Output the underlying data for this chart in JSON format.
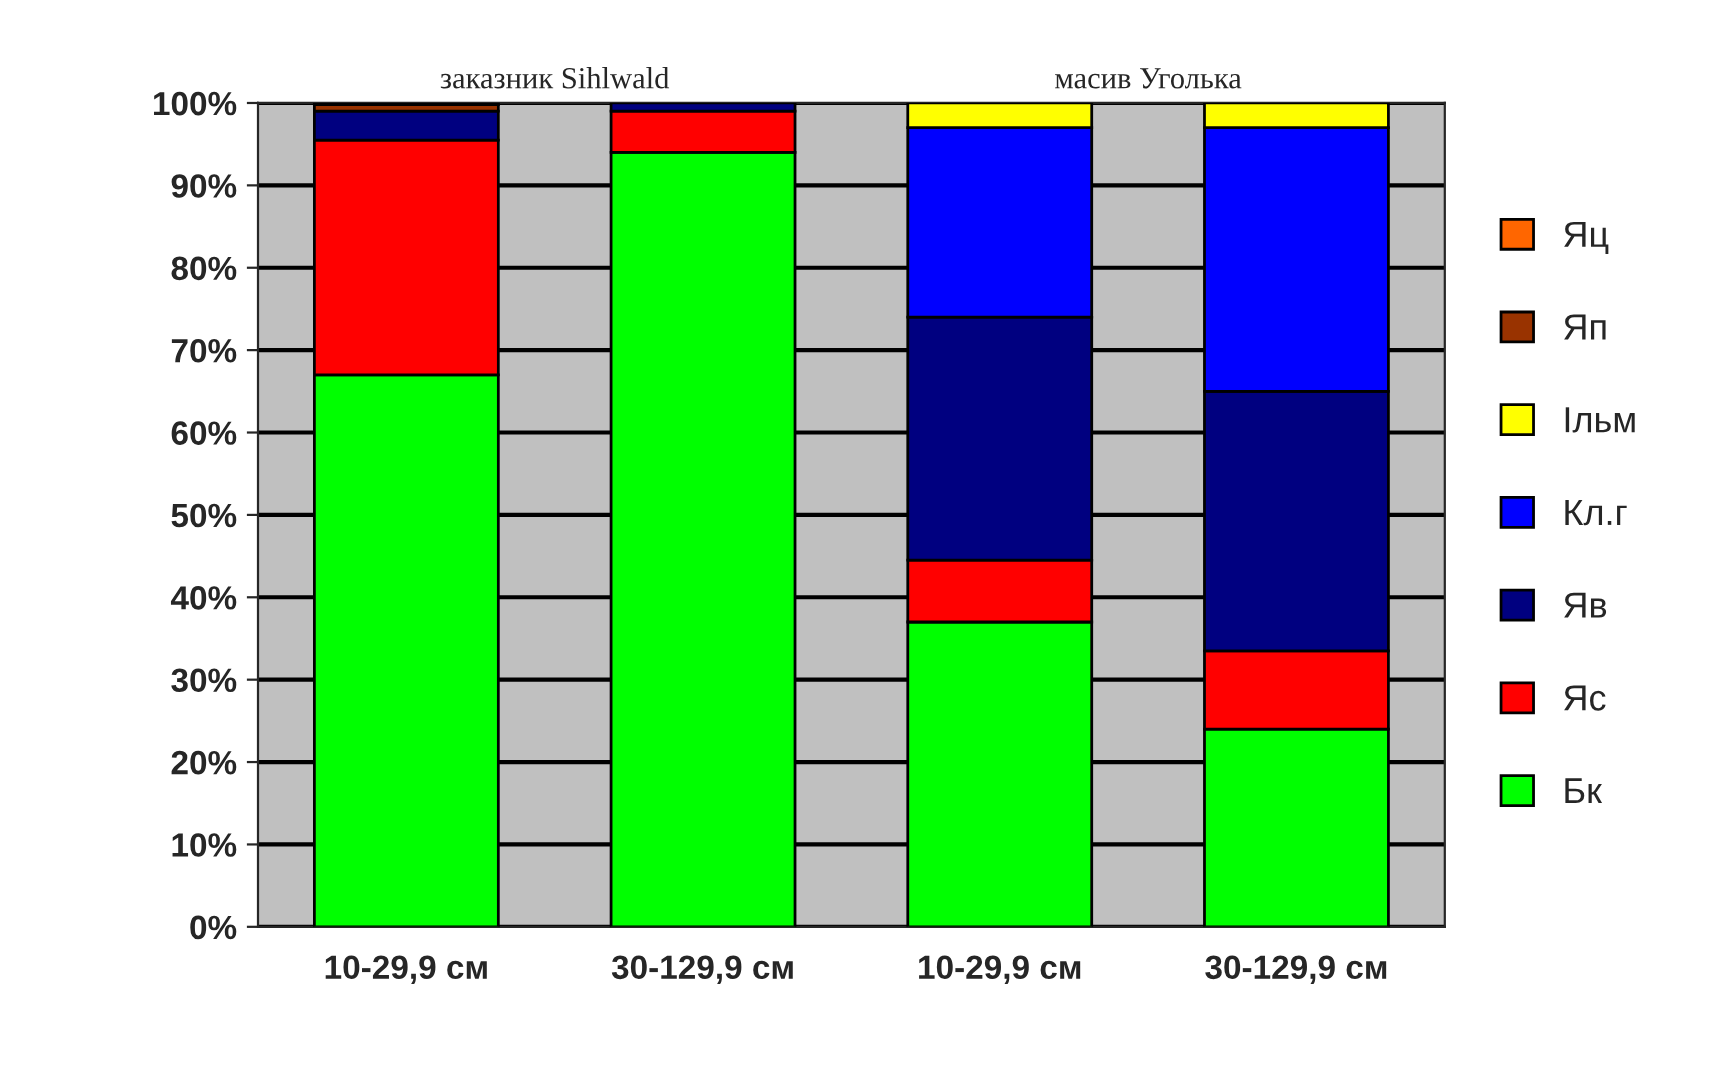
{
  "chart_data": {
    "type": "bar",
    "stacked": true,
    "categories": [
      "10-29,9 см",
      "30-129,9 см",
      "10-29,9 см",
      "30-129,9 см"
    ],
    "series": [
      {
        "name": "Бк",
        "color": "#00ff00",
        "values": [
          67,
          94,
          37,
          24
        ]
      },
      {
        "name": "Яс",
        "color": "#ff0000",
        "values": [
          28.5,
          5,
          7.5,
          9.5
        ]
      },
      {
        "name": "Яв",
        "color": "#000080",
        "values": [
          3.5,
          1,
          29.5,
          31.5
        ]
      },
      {
        "name": "Кл.г",
        "color": "#0000ff",
        "values": [
          0,
          0,
          23,
          32
        ]
      },
      {
        "name": "Ільм",
        "color": "#ffff00",
        "values": [
          0,
          0,
          3,
          3
        ]
      },
      {
        "name": "Яп",
        "color": "#993300",
        "values": [
          0.8,
          0,
          0,
          0
        ]
      },
      {
        "name": "Яц",
        "color": "#ff6600",
        "values": [
          0.2,
          0,
          0,
          0
        ]
      }
    ],
    "annotations": [
      "заказник Sihlwald",
      "масив Уголька"
    ],
    "ylim": [
      0,
      100
    ],
    "yticks": [
      {
        "value": 0,
        "label": "0%"
      },
      {
        "value": 10,
        "label": "10%"
      },
      {
        "value": 20,
        "label": "20%"
      },
      {
        "value": 30,
        "label": "30%"
      },
      {
        "value": 40,
        "label": "40%"
      },
      {
        "value": 50,
        "label": "50%"
      },
      {
        "value": 60,
        "label": "60%"
      },
      {
        "value": 70,
        "label": "70%"
      },
      {
        "value": 80,
        "label": "80%"
      },
      {
        "value": 90,
        "label": "90%"
      },
      {
        "value": 100,
        "label": "100%"
      }
    ],
    "grid": "y",
    "legend": "right"
  }
}
